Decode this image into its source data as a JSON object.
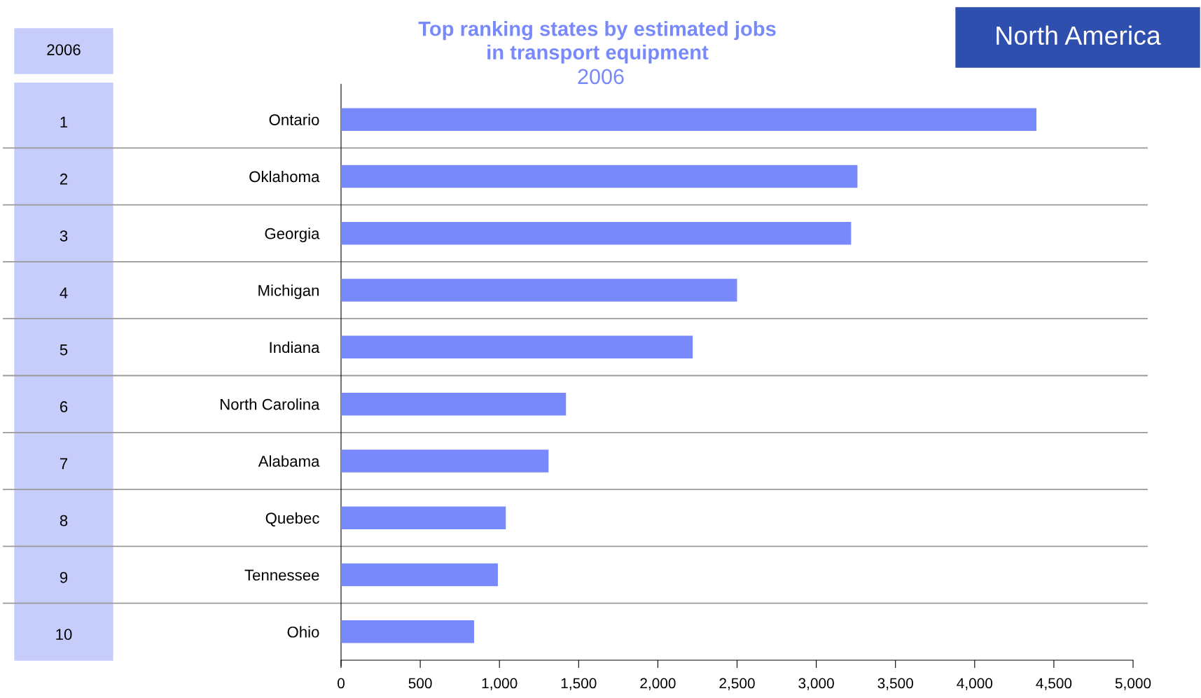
{
  "chart_data": {
    "type": "bar",
    "orientation": "horizontal",
    "title": "Top ranking states by estimated jobs\nin transport equipment",
    "subtitle": "2006",
    "categories": [
      "Ontario",
      "Oklahoma",
      "Georgia",
      "Michigan",
      "Indiana",
      "North Carolina",
      "Alabama",
      "Quebec",
      "Tennessee",
      "Ohio"
    ],
    "values": [
      4390,
      3260,
      3220,
      2500,
      2220,
      1420,
      1310,
      1040,
      990,
      840
    ],
    "color": "#7889fb",
    "xlim": [
      0,
      5000
    ],
    "xticks": [
      0,
      {
        "value": 500,
        "label": "500"
      },
      {
        "value": 1000,
        "label": "1,000"
      },
      {
        "value": 1500,
        "label": "1,500"
      },
      {
        "value": 2000,
        "label": "2,000"
      },
      {
        "value": 2500,
        "label": "2,500"
      },
      {
        "value": 3000,
        "label": "3,000"
      },
      {
        "value": 3500,
        "label": "3,500"
      },
      {
        "value": 4000,
        "label": "4,000"
      },
      {
        "value": 4500,
        "label": "4,500"
      },
      {
        "value": 5000,
        "label": "5,000"
      }
    ],
    "grid": "y",
    "annotations": [
      "North America",
      "2006",
      "1",
      "2",
      "3",
      "4",
      "5",
      "6",
      "7",
      "8",
      "9",
      "10"
    ]
  }
}
